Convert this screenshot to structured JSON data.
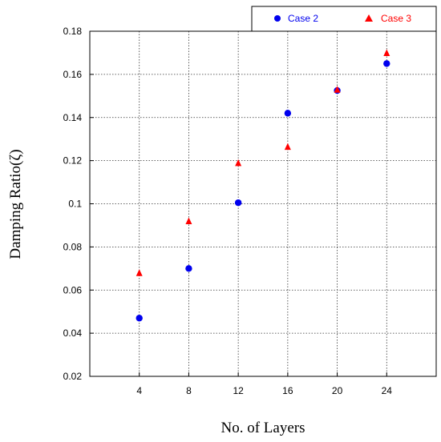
{
  "chart_data": {
    "type": "scatter",
    "title": "",
    "xlabel": "No. of Layers",
    "ylabel": "Damping Ratio(ζ)",
    "x": [
      4,
      8,
      12,
      16,
      20,
      24
    ],
    "xlim": [
      0,
      28
    ],
    "ylim": [
      0.02,
      0.18
    ],
    "xticks": [
      4,
      8,
      12,
      16,
      20,
      24
    ],
    "yticks": [
      0.02,
      0.04,
      0.06,
      0.08,
      0.1,
      0.12,
      0.14,
      0.16,
      0.18
    ],
    "ytick_labels": [
      "0.02",
      "0.04",
      "0.06",
      "0.08",
      "0.1",
      "0.12",
      "0.14",
      "0.16",
      "0.18"
    ],
    "grid": true,
    "legend_position": "top-right outside",
    "series": [
      {
        "name": "Case 2",
        "marker": "circle",
        "color": "#0000ee",
        "values": [
          0.047,
          0.07,
          0.1005,
          0.142,
          0.1525,
          0.165
        ]
      },
      {
        "name": "Case 3",
        "marker": "triangle",
        "color": "#ff0000",
        "values": [
          0.068,
          0.092,
          0.119,
          0.1265,
          0.153,
          0.17
        ]
      }
    ]
  }
}
